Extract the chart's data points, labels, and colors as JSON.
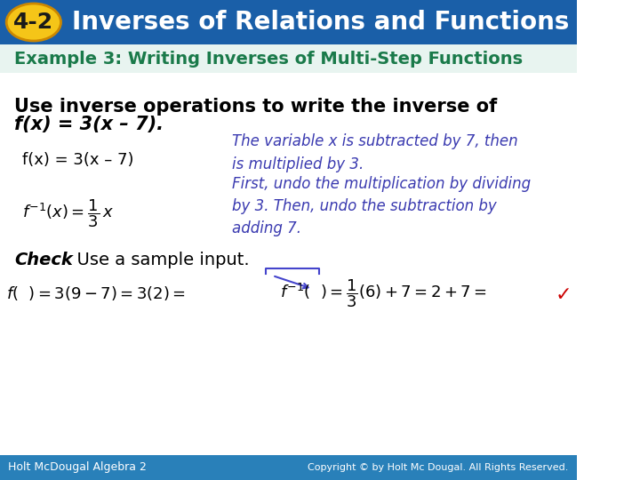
{
  "header_bg": "#1a5fa8",
  "header_text": "Inverses of Relations and Functions",
  "header_badge_bg": "#f5c518",
  "header_badge_text": "4-2",
  "header_text_color": "#ffffff",
  "example_text": "Example 3: Writing Inverses of Multi-Step Functions",
  "example_color": "#1a7a4a",
  "body_bg": "#ffffff",
  "main_instruction": "Use inverse operations to write the inverse of",
  "main_instruction2": "f(x) = 3(x – 7).",
  "line1_left": "f(x) = 3(x – 7)",
  "line1_right": "The variable x is subtracted by 7, then\nis multiplied by 3.",
  "line2_right": "First, undo the multiplication by dividing\nby 3. Then, undo the subtraction by\nadding 7.",
  "italic_color": "#3a3ab0",
  "check_label": "Check",
  "check_text": "  Use a sample input.",
  "bottom_line": "f(   ) = 3(9 – 7) = 3(2) =",
  "bottom_line2": "f ⁻¹(   ) =",
  "bottom_line3": "(6) + 7= 2 + 7=",
  "footer_left": "Holt McDougal Algebra 2",
  "footer_right": "Copyright © by Holt Mc Dougal. All Rights Reserved.",
  "footer_bg": "#2980b9",
  "footer_text_color": "#ffffff",
  "green_check_color": "#cc0000",
  "blue_arrow_color": "#4444cc"
}
